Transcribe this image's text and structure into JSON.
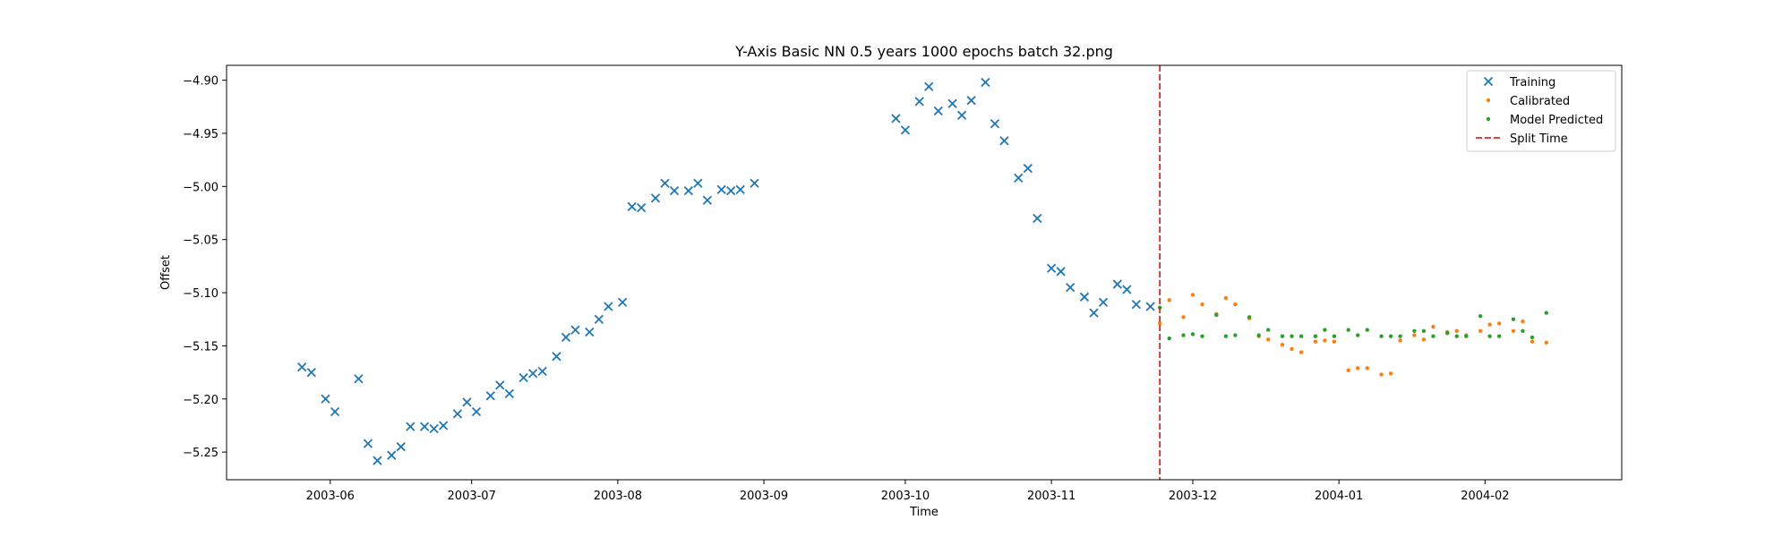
{
  "chart_data": {
    "type": "scatter",
    "title": "Y-Axis Basic NN 0.5 years 1000 epochs batch 32.png",
    "xlabel": "Time",
    "ylabel": "Offset",
    "xlim": [
      "2003-05-10",
      "2004-03-01"
    ],
    "ylim": [
      -5.276,
      -4.886
    ],
    "xticks": [
      "2003-06",
      "2003-07",
      "2003-08",
      "2003-09",
      "2003-10",
      "2003-11",
      "2003-12",
      "2004-01",
      "2004-02"
    ],
    "yticks": [
      -4.9,
      -4.95,
      -5.0,
      -5.05,
      -5.1,
      -5.15,
      -5.2,
      -5.25
    ],
    "grid": false,
    "legend_position": "top-right",
    "split_time": "2003-11-24",
    "series": [
      {
        "name": "Training",
        "marker": "x",
        "color": "#1f77b4",
        "points": [
          [
            "2003-05-26",
            -5.17
          ],
          [
            "2003-05-28",
            -5.175
          ],
          [
            "2003-05-31",
            -5.2
          ],
          [
            "2003-06-02",
            -5.212
          ],
          [
            "2003-06-07",
            -5.181
          ],
          [
            "2003-06-09",
            -5.242
          ],
          [
            "2003-06-11",
            -5.258
          ],
          [
            "2003-06-14",
            -5.253
          ],
          [
            "2003-06-16",
            -5.245
          ],
          [
            "2003-06-18",
            -5.226
          ],
          [
            "2003-06-21",
            -5.226
          ],
          [
            "2003-06-23",
            -5.228
          ],
          [
            "2003-06-25",
            -5.225
          ],
          [
            "2003-06-28",
            -5.214
          ],
          [
            "2003-06-30",
            -5.203
          ],
          [
            "2003-07-02",
            -5.212
          ],
          [
            "2003-07-05",
            -5.197
          ],
          [
            "2003-07-07",
            -5.187
          ],
          [
            "2003-07-09",
            -5.195
          ],
          [
            "2003-07-12",
            -5.18
          ],
          [
            "2003-07-14",
            -5.176
          ],
          [
            "2003-07-16",
            -5.174
          ],
          [
            "2003-07-19",
            -5.16
          ],
          [
            "2003-07-21",
            -5.142
          ],
          [
            "2003-07-23",
            -5.135
          ],
          [
            "2003-07-26",
            -5.137
          ],
          [
            "2003-07-28",
            -5.125
          ],
          [
            "2003-07-30",
            -5.113
          ],
          [
            "2003-08-02",
            -5.109
          ],
          [
            "2003-08-04",
            -5.019
          ],
          [
            "2003-08-06",
            -5.02
          ],
          [
            "2003-08-09",
            -5.011
          ],
          [
            "2003-08-11",
            -4.997
          ],
          [
            "2003-08-13",
            -5.004
          ],
          [
            "2003-08-16",
            -5.004
          ],
          [
            "2003-08-18",
            -4.997
          ],
          [
            "2003-08-20",
            -5.013
          ],
          [
            "2003-08-23",
            -5.003
          ],
          [
            "2003-08-25",
            -5.004
          ],
          [
            "2003-08-27",
            -5.003
          ],
          [
            "2003-08-30",
            -4.997
          ],
          [
            "2003-09-29",
            -4.936
          ],
          [
            "2003-10-01",
            -4.947
          ],
          [
            "2003-10-04",
            -4.92
          ],
          [
            "2003-10-06",
            -4.906
          ],
          [
            "2003-10-08",
            -4.929
          ],
          [
            "2003-10-11",
            -4.922
          ],
          [
            "2003-10-13",
            -4.933
          ],
          [
            "2003-10-15",
            -4.919
          ],
          [
            "2003-10-18",
            -4.902
          ],
          [
            "2003-10-20",
            -4.941
          ],
          [
            "2003-10-22",
            -4.957
          ],
          [
            "2003-10-25",
            -4.992
          ],
          [
            "2003-10-27",
            -4.983
          ],
          [
            "2003-10-29",
            -5.03
          ],
          [
            "2003-11-01",
            -5.077
          ],
          [
            "2003-11-03",
            -5.08
          ],
          [
            "2003-11-05",
            -5.095
          ],
          [
            "2003-11-08",
            -5.104
          ],
          [
            "2003-11-10",
            -5.119
          ],
          [
            "2003-11-12",
            -5.109
          ],
          [
            "2003-11-15",
            -5.092
          ],
          [
            "2003-11-17",
            -5.097
          ],
          [
            "2003-11-19",
            -5.111
          ],
          [
            "2003-11-22",
            -5.113
          ]
        ]
      },
      {
        "name": "Calibrated",
        "marker": "dot",
        "color": "#ff7f0e",
        "points": [
          [
            "2003-11-24",
            -5.129
          ],
          [
            "2003-11-26",
            -5.107
          ],
          [
            "2003-11-29",
            -5.123
          ],
          [
            "2003-12-01",
            -5.102
          ],
          [
            "2003-12-03",
            -5.111
          ],
          [
            "2003-12-06",
            -5.12
          ],
          [
            "2003-12-08",
            -5.105
          ],
          [
            "2003-12-10",
            -5.111
          ],
          [
            "2003-12-13",
            -5.124
          ],
          [
            "2003-12-15",
            -5.141
          ],
          [
            "2003-12-17",
            -5.144
          ],
          [
            "2003-12-20",
            -5.149
          ],
          [
            "2003-12-22",
            -5.153
          ],
          [
            "2003-12-24",
            -5.156
          ],
          [
            "2003-12-27",
            -5.146
          ],
          [
            "2003-12-29",
            -5.145
          ],
          [
            "2003-12-31",
            -5.146
          ],
          [
            "2004-01-03",
            -5.173
          ],
          [
            "2004-01-05",
            -5.171
          ],
          [
            "2004-01-07",
            -5.171
          ],
          [
            "2004-01-10",
            -5.177
          ],
          [
            "2004-01-12",
            -5.176
          ],
          [
            "2004-01-14",
            -5.145
          ],
          [
            "2004-01-17",
            -5.14
          ],
          [
            "2004-01-19",
            -5.144
          ],
          [
            "2004-01-21",
            -5.132
          ],
          [
            "2004-01-24",
            -5.137
          ],
          [
            "2004-01-26",
            -5.136
          ],
          [
            "2004-01-28",
            -5.14
          ],
          [
            "2004-01-31",
            -5.136
          ],
          [
            "2004-02-02",
            -5.13
          ],
          [
            "2004-02-04",
            -5.129
          ],
          [
            "2004-02-07",
            -5.136
          ],
          [
            "2004-02-09",
            -5.127
          ],
          [
            "2004-02-11",
            -5.146
          ],
          [
            "2004-02-14",
            -5.147
          ]
        ]
      },
      {
        "name": "Model Predicted",
        "marker": "dot",
        "color": "#2ca02c",
        "points": [
          [
            "2003-11-24",
            -5.114
          ],
          [
            "2003-11-26",
            -5.143
          ],
          [
            "2003-11-29",
            -5.14
          ],
          [
            "2003-12-01",
            -5.139
          ],
          [
            "2003-12-03",
            -5.141
          ],
          [
            "2003-12-06",
            -5.121
          ],
          [
            "2003-12-08",
            -5.141
          ],
          [
            "2003-12-10",
            -5.14
          ],
          [
            "2003-12-13",
            -5.123
          ],
          [
            "2003-12-15",
            -5.14
          ],
          [
            "2003-12-17",
            -5.135
          ],
          [
            "2003-12-20",
            -5.141
          ],
          [
            "2003-12-22",
            -5.141
          ],
          [
            "2003-12-24",
            -5.141
          ],
          [
            "2003-12-27",
            -5.141
          ],
          [
            "2003-12-29",
            -5.135
          ],
          [
            "2003-12-31",
            -5.141
          ],
          [
            "2004-01-03",
            -5.135
          ],
          [
            "2004-01-05",
            -5.14
          ],
          [
            "2004-01-07",
            -5.135
          ],
          [
            "2004-01-10",
            -5.141
          ],
          [
            "2004-01-12",
            -5.141
          ],
          [
            "2004-01-14",
            -5.141
          ],
          [
            "2004-01-17",
            -5.136
          ],
          [
            "2004-01-19",
            -5.136
          ],
          [
            "2004-01-21",
            -5.141
          ],
          [
            "2004-01-24",
            -5.138
          ],
          [
            "2004-01-26",
            -5.141
          ],
          [
            "2004-01-28",
            -5.141
          ],
          [
            "2004-01-31",
            -5.122
          ],
          [
            "2004-02-02",
            -5.141
          ],
          [
            "2004-02-04",
            -5.141
          ],
          [
            "2004-02-07",
            -5.125
          ],
          [
            "2004-02-09",
            -5.136
          ],
          [
            "2004-02-11",
            -5.142
          ],
          [
            "2004-02-14",
            -5.119
          ]
        ]
      }
    ],
    "split_label": "Split Time",
    "split_color": "#d62728"
  }
}
